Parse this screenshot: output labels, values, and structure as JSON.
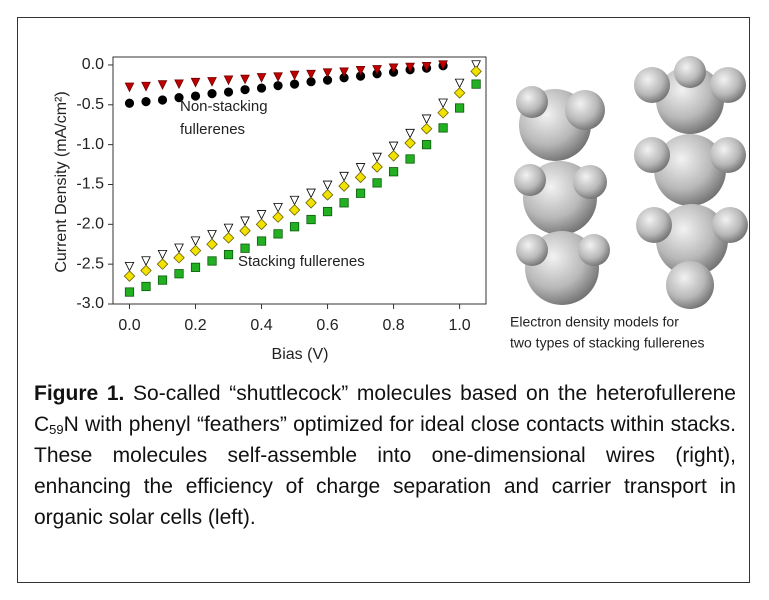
{
  "chart_data": {
    "type": "scatter",
    "ylabel": "Current Density (mA/cm²)",
    "xlabel": "Bias (V)",
    "annotations": [
      "Non-stacking",
      "fullerenes",
      "Stacking fullerenes"
    ],
    "xlim": [
      -0.05,
      1.08
    ],
    "ylim": [
      -3.0,
      0.1
    ],
    "xticks": [
      {
        "value": 0,
        "label": "0.0"
      },
      0.2,
      0.4,
      0.6,
      0.8,
      {
        "value": 1,
        "label": "1.0"
      }
    ],
    "yticks": [
      {
        "value": 0,
        "label": "0.0"
      },
      -0.5,
      {
        "value": -1,
        "label": "-1.0"
      },
      -1.5,
      {
        "value": -2,
        "label": "-2.0"
      },
      -2.5,
      {
        "value": -3,
        "label": "-3.0"
      }
    ],
    "x": [
      0,
      0.05,
      0.1,
      0.15,
      0.2,
      0.25,
      0.3,
      0.35,
      0.4,
      0.45,
      0.5,
      0.55,
      0.6,
      0.65,
      0.7,
      0.75,
      0.8,
      0.85,
      0.9,
      0.95,
      1.0,
      1.05
    ],
    "series": [
      {
        "marker": "circle",
        "color": "#000000",
        "edge": "#000000",
        "values": [
          -0.48,
          -0.46,
          -0.44,
          -0.41,
          -0.39,
          -0.36,
          -0.34,
          -0.31,
          -0.29,
          -0.26,
          -0.24,
          -0.21,
          -0.19,
          -0.16,
          -0.14,
          -0.11,
          -0.09,
          -0.06,
          -0.04,
          -0.01,
          null,
          null
        ]
      },
      {
        "marker": "triangle-down",
        "color": "#c00000",
        "edge": "#700000",
        "values": [
          -0.28,
          -0.27,
          -0.25,
          -0.24,
          -0.22,
          -0.21,
          -0.19,
          -0.18,
          -0.16,
          -0.15,
          -0.13,
          -0.12,
          -0.1,
          -0.09,
          -0.07,
          -0.06,
          -0.04,
          -0.03,
          -0.02,
          0.0,
          null,
          null
        ]
      },
      {
        "marker": "triangle-down",
        "color": "#ffffff",
        "edge": "#000000",
        "values": [
          -2.53,
          -2.46,
          -2.38,
          -2.3,
          -2.21,
          -2.13,
          -2.05,
          -1.96,
          -1.88,
          -1.79,
          -1.7,
          -1.61,
          -1.51,
          -1.4,
          -1.29,
          -1.16,
          -1.02,
          -0.86,
          -0.68,
          -0.48,
          -0.23,
          0.0
        ]
      },
      {
        "marker": "square",
        "color": "#22b022",
        "edge": "#0a5a0a",
        "values": [
          -2.85,
          -2.78,
          -2.7,
          -2.62,
          -2.54,
          -2.46,
          -2.38,
          -2.3,
          -2.21,
          -2.12,
          -2.03,
          -1.94,
          -1.84,
          -1.73,
          -1.61,
          -1.48,
          -1.34,
          -1.18,
          -1.0,
          -0.79,
          -0.54,
          -0.24
        ]
      },
      {
        "marker": "diamond",
        "color": "#f2e200",
        "edge": "#6a6000",
        "values": [
          -2.65,
          -2.58,
          -2.5,
          -2.42,
          -2.33,
          -2.25,
          -2.17,
          -2.08,
          -2.0,
          -1.91,
          -1.82,
          -1.73,
          -1.63,
          -1.52,
          -1.41,
          -1.28,
          -1.14,
          -0.98,
          -0.8,
          -0.6,
          -0.35,
          -0.08
        ]
      }
    ]
  },
  "image_caption": [
    "Electron density models for",
    "two types of stacking fullerenes"
  ],
  "caption": {
    "label": "Figure 1.",
    "text_before": " So-called “shuttlecock” molecules based on the heterofullerene C",
    "subscript": "59",
    "text_after": "N with phenyl “feathers” optimized for ideal close contacts within stacks. These molecules self-assemble into one-dimensional wires (right), enhancing the efficiency of charge separation and carrier transport in organic solar cells (left)."
  }
}
